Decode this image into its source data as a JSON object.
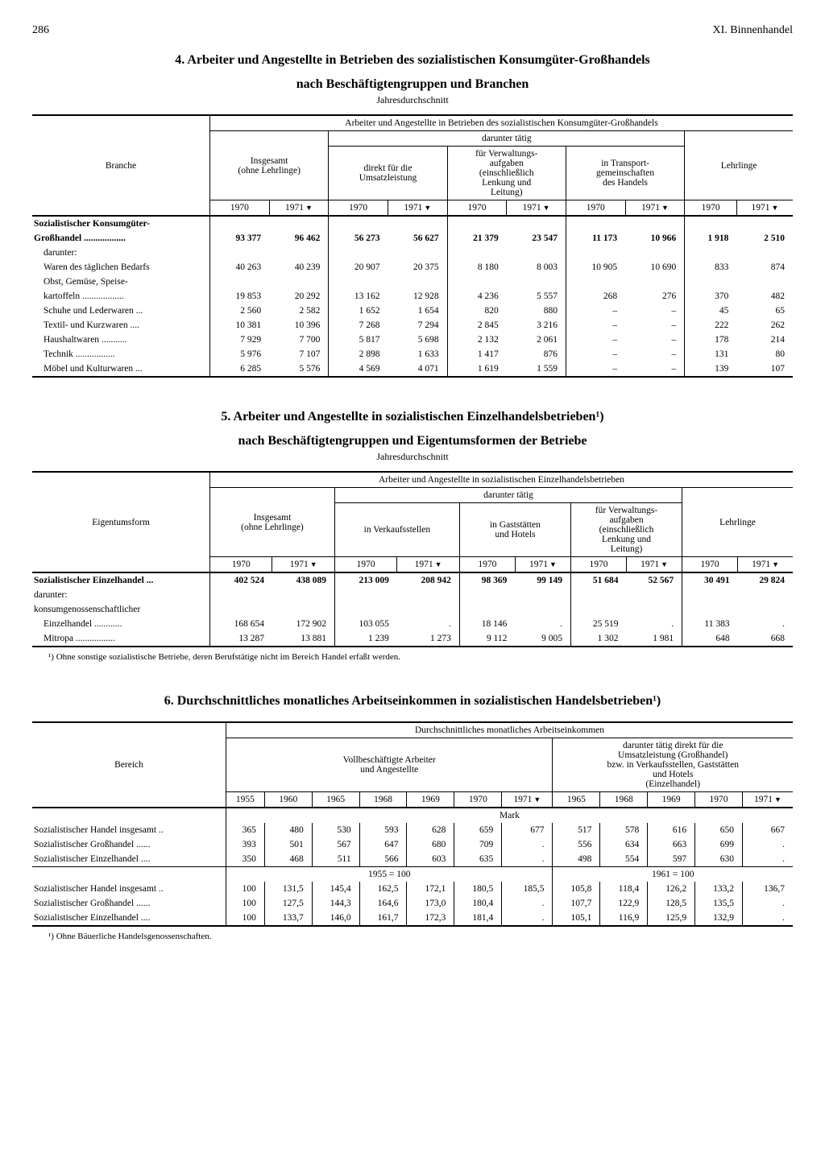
{
  "page": {
    "number": "286",
    "chapter": "XI. Binnenhandel"
  },
  "section4": {
    "title_line1": "4. Arbeiter und Angestellte in Betrieben des sozialistischen Konsumgüter-Großhandels",
    "title_line2": "nach Beschäftigtengruppen und Branchen",
    "subtitle": "Jahresdurchschnitt",
    "h_branche": "Branche",
    "h_super": "Arbeiter und Angestellte in Betrieben des sozialistischen Konsumgüter-Großhandels",
    "h_darunter": "darunter tätig",
    "h_insgesamt1": "Insgesamt",
    "h_insgesamt2": "(ohne Lehrlinge)",
    "h_direkt1": "direkt für die",
    "h_direkt2": "Umsatzleistung",
    "h_verw1": "für Verwaltungs-",
    "h_verw2": "aufgaben",
    "h_verw3": "(einschließlich",
    "h_verw4": "Lenkung und",
    "h_verw5": "Leitung)",
    "h_transport1": "in Transport-",
    "h_transport2": "gemeinschaften",
    "h_transport3": "des Handels",
    "h_lehrlinge": "Lehrlinge",
    "y1970": "1970",
    "y1971": "1971",
    "rows": [
      {
        "label": "Sozialistischer Konsumgüter-",
        "bold": true,
        "vals": [
          "",
          "",
          "",
          "",
          "",
          "",
          "",
          "",
          "",
          ""
        ]
      },
      {
        "label": "Großhandel ..................",
        "bold": true,
        "vals": [
          "93 377",
          "96 462",
          "56 273",
          "56 627",
          "21 379",
          "23 547",
          "11 173",
          "10 966",
          "1 918",
          "2 510"
        ]
      },
      {
        "label": "darunter:",
        "indent": 1,
        "vals": [
          "",
          "",
          "",
          "",
          "",
          "",
          "",
          "",
          "",
          ""
        ]
      },
      {
        "label": "Waren des täglichen Bedarfs",
        "indent": 1,
        "vals": [
          "40 263",
          "40 239",
          "20 907",
          "20 375",
          "8 180",
          "8 003",
          "10 905",
          "10 690",
          "833",
          "874"
        ]
      },
      {
        "label": "Obst, Gemüse, Speise-",
        "indent": 1,
        "vals": [
          "",
          "",
          "",
          "",
          "",
          "",
          "",
          "",
          "",
          ""
        ]
      },
      {
        "label": "kartoffeln ..................",
        "indent": 1,
        "vals": [
          "19 853",
          "20 292",
          "13 162",
          "12 928",
          "4 236",
          "5 557",
          "268",
          "276",
          "370",
          "482"
        ]
      },
      {
        "label": "Schuhe und Lederwaren ...",
        "indent": 1,
        "vals": [
          "2 560",
          "2 582",
          "1 652",
          "1 654",
          "820",
          "880",
          "–",
          "–",
          "45",
          "65"
        ]
      },
      {
        "label": "Textil- und Kurzwaren ....",
        "indent": 1,
        "vals": [
          "10 381",
          "10 396",
          "7 268",
          "7 294",
          "2 845",
          "3 216",
          "–",
          "–",
          "222",
          "262"
        ]
      },
      {
        "label": "Haushaltwaren ...........",
        "indent": 1,
        "vals": [
          "7 929",
          "7 700",
          "5 817",
          "5 698",
          "2 132",
          "2 061",
          "–",
          "–",
          "178",
          "214"
        ]
      },
      {
        "label": "Technik .................",
        "indent": 1,
        "vals": [
          "5 976",
          "7 107",
          "2 898",
          "1 633",
          "1 417",
          "876",
          "–",
          "–",
          "131",
          "80"
        ]
      },
      {
        "label": "Möbel und Kulturwaren ...",
        "indent": 1,
        "vals": [
          "6 285",
          "5 576",
          "4 569",
          "4 071",
          "1 619",
          "1 559",
          "–",
          "–",
          "139",
          "107"
        ]
      }
    ]
  },
  "section5": {
    "title_line1": "5. Arbeiter und Angestellte in sozialistischen Einzelhandelsbetrieben¹)",
    "title_line2": "nach Beschäftigtengruppen und Eigentumsformen der Betriebe",
    "subtitle": "Jahresdurchschnitt",
    "h_eigentum": "Eigentumsform",
    "h_super": "Arbeiter und Angestellte in sozialistischen Einzelhandelsbetrieben",
    "h_darunter": "darunter tätig",
    "h_verkauf": "in Verkaufsstellen",
    "h_gast1": "in Gaststätten",
    "h_gast2": "und Hotels",
    "rows": [
      {
        "label": "Sozialistischer Einzelhandel ...",
        "bold": true,
        "vals": [
          "402 524",
          "438 089",
          "213 009",
          "208 942",
          "98 369",
          "99 149",
          "51 684",
          "52 567",
          "30 491",
          "29 824"
        ]
      },
      {
        "label": "darunter:",
        "vals": [
          "",
          "",
          "",
          "",
          "",
          "",
          "",
          "",
          "",
          ""
        ]
      },
      {
        "label": "konsumgenossenschaftlicher",
        "vals": [
          "",
          "",
          "",
          "",
          "",
          "",
          "",
          "",
          "",
          ""
        ]
      },
      {
        "label": "Einzelhandel ............",
        "indent": 1,
        "vals": [
          "168 654",
          "172 902",
          "103 055",
          ".",
          "18 146",
          ".",
          "25 519",
          ".",
          "11 383",
          "."
        ]
      },
      {
        "label": "Mitropa .................",
        "indent": 1,
        "vals": [
          "13 287",
          "13 881",
          "1 239",
          "1 273",
          "9 112",
          "9 005",
          "1 302",
          "1 981",
          "648",
          "668"
        ]
      }
    ],
    "footnote": "¹) Ohne sonstige sozialistische Betriebe, deren Berufstätige nicht im Bereich Handel erfaßt werden."
  },
  "section6": {
    "title": "6. Durchschnittliches monatliches Arbeitseinkommen in sozialistischen Handelsbetrieben¹)",
    "h_bereich": "Bereich",
    "h_super": "Durchschnittliches monatliches Arbeitseinkommen",
    "h_vollb1": "Vollbeschäftigte Arbeiter",
    "h_vollb2": "und Angestellte",
    "h_dar1": "darunter tätig direkt für die",
    "h_dar2": "Umsatzleistung (Großhandel)",
    "h_dar3": "bzw. in Verkaufsstellen, Gaststätten",
    "h_dar4": "und Hotels",
    "h_dar5": "(Einzelhandel)",
    "years_a": [
      "1955",
      "1960",
      "1965",
      "1968",
      "1969",
      "1970",
      "1971"
    ],
    "years_b": [
      "1965",
      "1968",
      "1969",
      "1970",
      "1971"
    ],
    "unit_mark": "Mark",
    "rows_mark": [
      {
        "label": "Sozialistischer Handel insgesamt ..",
        "vals": [
          "365",
          "480",
          "530",
          "593",
          "628",
          "659",
          "677",
          "517",
          "578",
          "616",
          "650",
          "667"
        ]
      },
      {
        "label": "Sozialistischer Großhandel ......",
        "vals": [
          "393",
          "501",
          "567",
          "647",
          "680",
          "709",
          ".",
          "556",
          "634",
          "663",
          "699",
          "."
        ]
      },
      {
        "label": "Sozialistischer Einzelhandel ....",
        "vals": [
          "350",
          "468",
          "511",
          "566",
          "603",
          "635",
          ".",
          "498",
          "554",
          "597",
          "630",
          "."
        ]
      }
    ],
    "idx_a": "1955 = 100",
    "idx_b": "1961 = 100",
    "rows_idx": [
      {
        "label": "Sozialistischer Handel insgesamt ..",
        "vals": [
          "100",
          "131,5",
          "145,4",
          "162,5",
          "172,1",
          "180,5",
          "185,5",
          "105,8",
          "118,4",
          "126,2",
          "133,2",
          "136,7"
        ]
      },
      {
        "label": "Sozialistischer Großhandel ......",
        "vals": [
          "100",
          "127,5",
          "144,3",
          "164,6",
          "173,0",
          "180,4",
          ".",
          "107,7",
          "122,9",
          "128,5",
          "135,5",
          "."
        ]
      },
      {
        "label": "Sozialistischer Einzelhandel ....",
        "vals": [
          "100",
          "133,7",
          "146,0",
          "161,7",
          "172,3",
          "181,4",
          ".",
          "105,1",
          "116,9",
          "125,9",
          "132,9",
          "."
        ]
      }
    ],
    "footnote": "¹) Ohne Bäuerliche Handelsgenossenschaften."
  }
}
